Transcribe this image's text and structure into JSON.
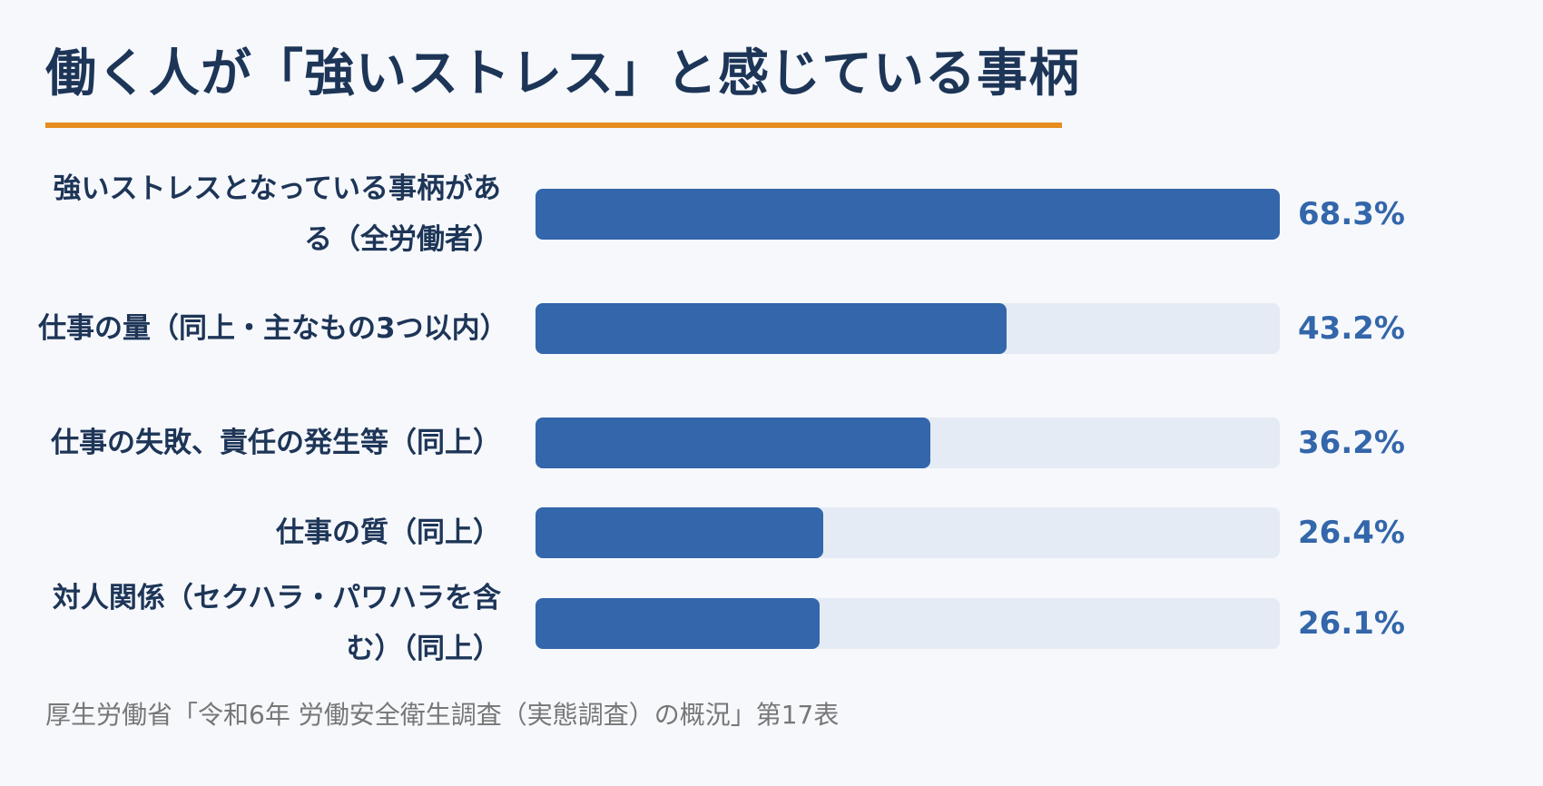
{
  "title": "働く人が「強いストレス」と感じている事柄",
  "source": "厚生労働省「令和6年 労働安全衛生調査（実態調査）の概況」第17表",
  "colors": {
    "title": "#1d3557",
    "accent_rule": "#e58d1f",
    "bar_fill": "#3366aa",
    "bar_track": "#e5ebf4",
    "value_text": "#3366aa",
    "source_text": "#777777",
    "background": "#f6f8fc"
  },
  "chart_data": {
    "type": "bar",
    "orientation": "horizontal",
    "xlim": [
      0,
      68.3
    ],
    "categories": [
      "強いストレスとなっている事柄がある（全労働者）",
      "仕事の量（同上・主なもの3つ以内）",
      "仕事の失敗、責任の発生等（同上）",
      "仕事の質（同上）",
      "対人関係（セクハラ・パワハラを含む）（同上）"
    ],
    "values": [
      68.3,
      43.2,
      36.2,
      26.4,
      26.1
    ],
    "value_labels": [
      "68.3%",
      "43.2%",
      "36.2%",
      "26.4%",
      "26.1%"
    ],
    "title": "働く人が「強いストレス」と感じている事柄"
  }
}
